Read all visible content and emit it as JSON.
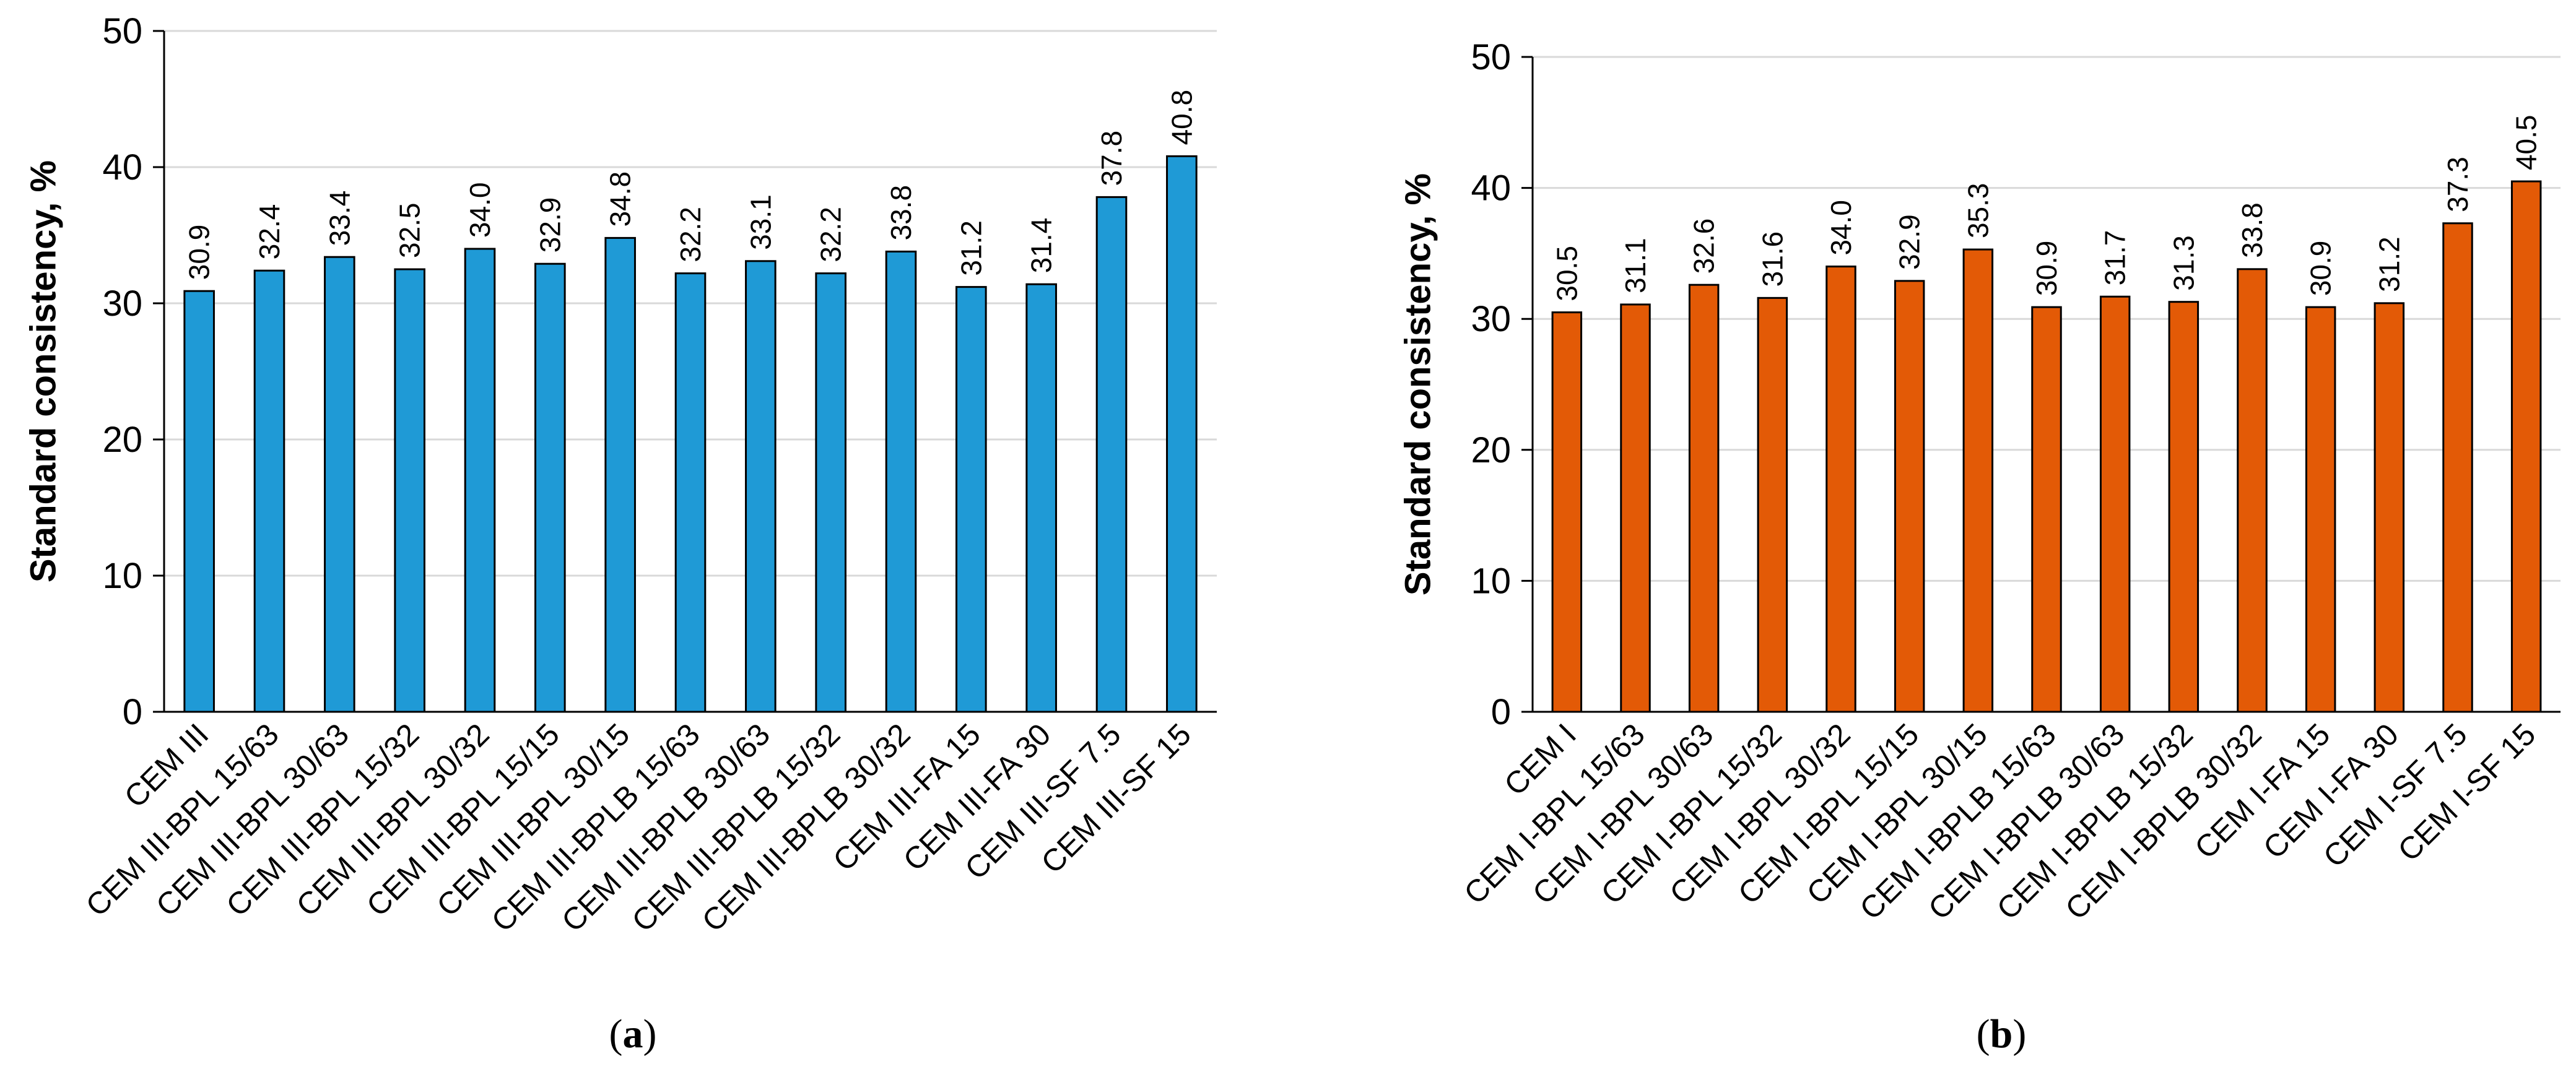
{
  "chart_data": [
    {
      "type": "bar",
      "panel": "a",
      "caption": {
        "open": "(",
        "letter": "a",
        "close": ")"
      },
      "ylabel": "Standard consistency, %",
      "xlabel": "",
      "ylim": [
        0,
        50
      ],
      "yticks": [
        0,
        10,
        20,
        30,
        40,
        50
      ],
      "grid": true,
      "bar_color": "#1f9ad6",
      "categories": [
        "CEM III",
        "CEM III-BPL 15/63",
        "CEM III-BPL 30/63",
        "CEM III-BPL 15/32",
        "CEM III-BPL 30/32",
        "CEM III-BPL 15/15",
        "CEM III-BPL 30/15",
        "CEM III-BPLB 15/63",
        "CEM III-BPLB 30/63",
        "CEM III-BPLB 15/32",
        "CEM III-BPLB 30/32",
        "CEM III-FA 15",
        "CEM III-FA 30",
        "CEM III-SF 7.5",
        "CEM III-SF 15"
      ],
      "values": [
        30.9,
        32.4,
        33.4,
        32.5,
        34.0,
        32.9,
        34.8,
        32.2,
        33.1,
        32.2,
        33.8,
        31.2,
        31.4,
        37.8,
        40.8
      ],
      "value_labels": [
        "30.9",
        "32.4",
        "33.4",
        "32.5",
        "34.0",
        "32.9",
        "34.8",
        "32.2",
        "33.1",
        "32.2",
        "33.8",
        "31.2",
        "31.4",
        "37.8",
        "40.8"
      ]
    },
    {
      "type": "bar",
      "panel": "b",
      "caption": {
        "open": "(",
        "letter": "b",
        "close": ")"
      },
      "ylabel": "Standard consistency, %",
      "xlabel": "",
      "ylim": [
        0,
        50
      ],
      "yticks": [
        0,
        10,
        20,
        30,
        40,
        50
      ],
      "grid": true,
      "bar_color": "#e35a06",
      "categories": [
        "CEM I",
        "CEM I-BPL 15/63",
        "CEM I-BPL 30/63",
        "CEM I-BPL 15/32",
        "CEM I-BPL 30/32",
        "CEM I-BPL 15/15",
        "CEM I-BPL 30/15",
        "CEM I-BPLB 15/63",
        "CEM I-BPLB 30/63",
        "CEM I-BPLB 15/32",
        "CEM I-BPLB 30/32",
        "CEM I-FA 15",
        "CEM I-FA 30",
        "CEM I-SF 7.5",
        "CEM I-SF 15"
      ],
      "values": [
        30.5,
        31.1,
        32.6,
        31.6,
        34.0,
        32.9,
        35.3,
        30.9,
        31.7,
        31.3,
        33.8,
        30.9,
        31.2,
        37.3,
        40.5
      ],
      "value_labels": [
        "30.5",
        "31.1",
        "32.6",
        "31.6",
        "34.0",
        "32.9",
        "35.3",
        "30.9",
        "31.7",
        "31.3",
        "33.8",
        "30.9",
        "31.2",
        "37.3",
        "40.5"
      ]
    }
  ]
}
